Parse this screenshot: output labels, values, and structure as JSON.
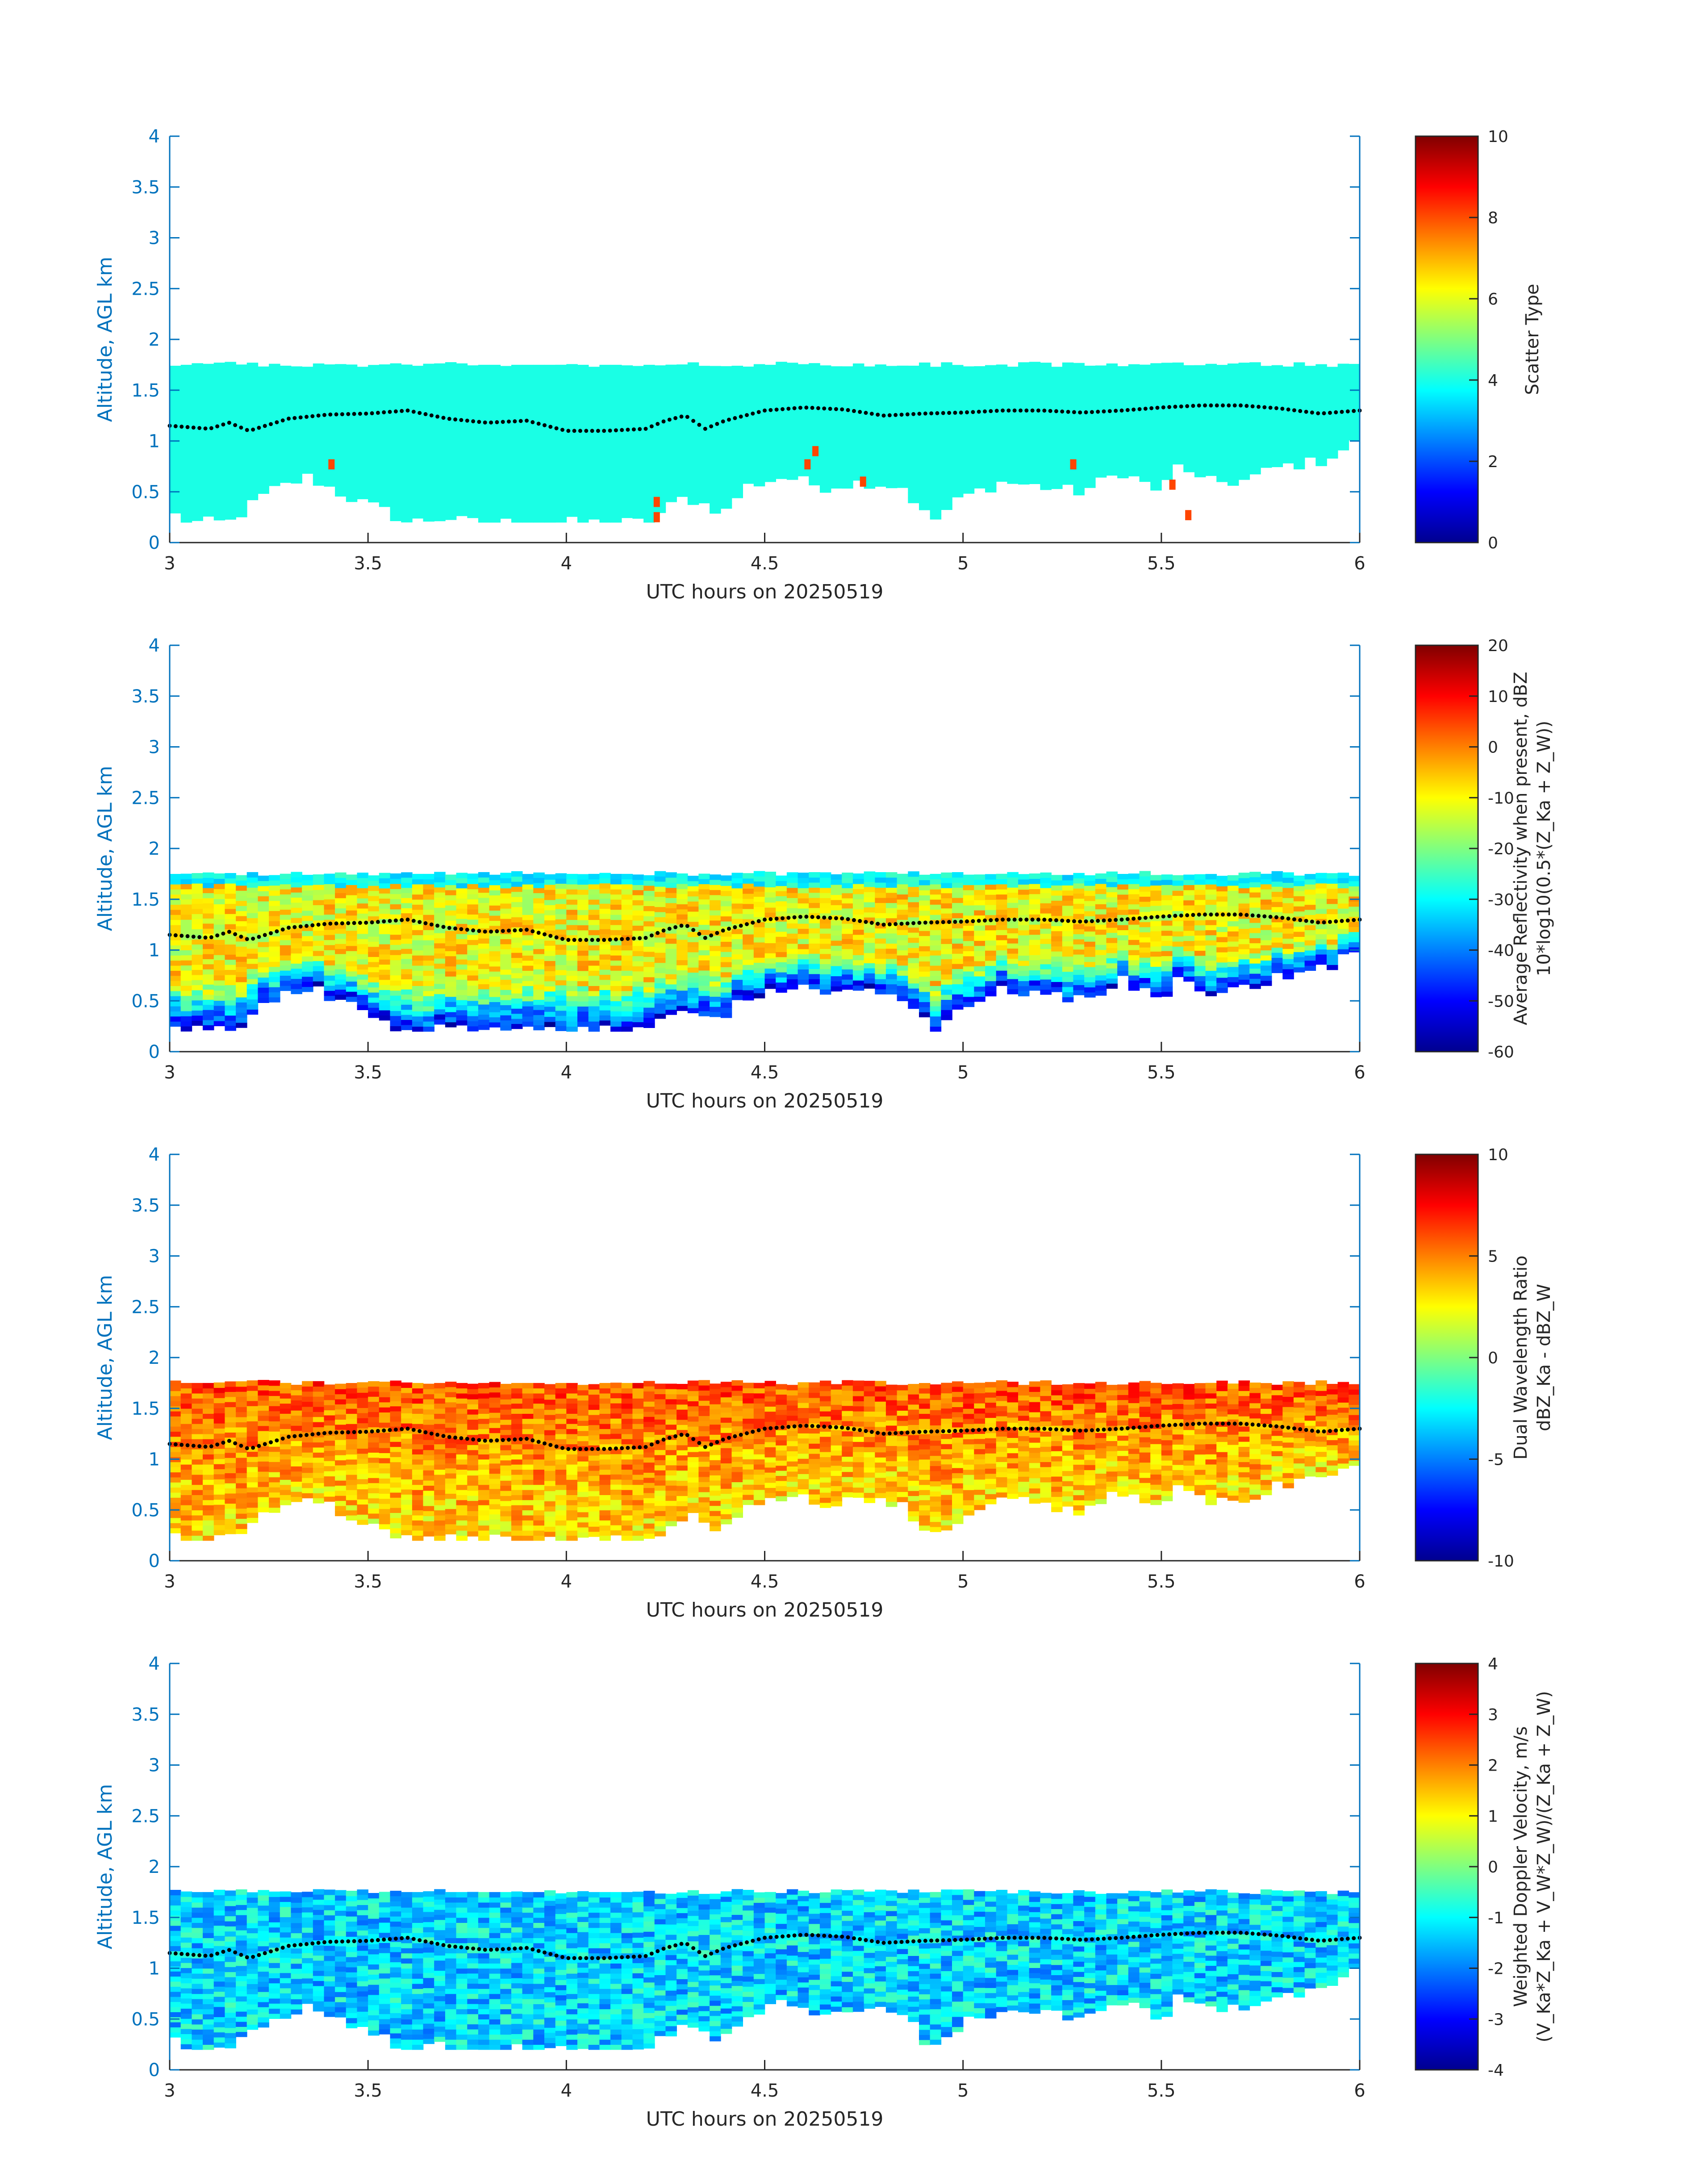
{
  "panels": [
    {
      "id": "scatter-type",
      "ylabel": "Altitude, AGL km",
      "xlabel": "UTC hours on 20250519",
      "colorbar": {
        "label_lines": [
          "Scatter Type"
        ],
        "ticks": [
          "0",
          "2",
          "4",
          "6",
          "8",
          "10"
        ],
        "range": [
          0,
          10
        ]
      }
    },
    {
      "id": "reflectivity",
      "ylabel": "Altitude, AGL km",
      "xlabel": "UTC hours on 20250519",
      "colorbar": {
        "label_lines": [
          "Average Reflectivity when present, dBZ",
          "10*log10(0.5*(Z_Ka + Z_W))"
        ],
        "ticks": [
          "-60",
          "-50",
          "-40",
          "-30",
          "-20",
          "-10",
          "0",
          "10",
          "20"
        ],
        "range": [
          -60,
          20
        ]
      }
    },
    {
      "id": "dual-wavelength-ratio",
      "ylabel": "Altitude, AGL km",
      "xlabel": "UTC hours on 20250519",
      "colorbar": {
        "label_lines": [
          "Dual Wavelength Ratio",
          "dBZ_Ka - dBZ_W"
        ],
        "ticks": [
          "-10",
          "-5",
          "0",
          "5",
          "10"
        ],
        "range": [
          -10,
          10
        ]
      }
    },
    {
      "id": "doppler-velocity",
      "ylabel": "Altitude, AGL km",
      "xlabel": "UTC hours on 20250519",
      "colorbar": {
        "label_lines": [
          "Weighted Doppler Velocity, m/s",
          "(V_Ka*Z_Ka + V_W*Z_W)/(Z_Ka + Z_W)"
        ],
        "ticks": [
          "-4",
          "-3",
          "-2",
          "-1",
          "0",
          "1",
          "2",
          "3",
          "4"
        ],
        "range": [
          -4,
          4
        ]
      }
    }
  ],
  "chart_data": [
    {
      "type": "heatmap",
      "xlabel": "UTC hours on 20250519",
      "ylabel": "Altitude, AGL km",
      "colorbar_label": "Scatter Type",
      "xlim": [
        3,
        6
      ],
      "ylim": [
        0,
        4
      ],
      "xticks": [
        "3",
        "3.5",
        "4",
        "4.5",
        "5",
        "5.5",
        "6"
      ],
      "yticks": [
        "0",
        "0.5",
        "1",
        "1.5",
        "2",
        "2.5",
        "3",
        "3.5",
        "4"
      ],
      "clim": [
        0,
        10
      ],
      "colormap": "jet",
      "cloud_top_km": 1.73,
      "cloud_base_km_by_hour": [
        [
          3.0,
          0.3
        ],
        [
          3.05,
          0.2
        ],
        [
          3.15,
          0.2
        ],
        [
          3.25,
          0.5
        ],
        [
          3.35,
          0.65
        ],
        [
          3.45,
          0.45
        ],
        [
          3.55,
          0.3
        ],
        [
          3.6,
          0.2
        ],
        [
          3.7,
          0.25
        ],
        [
          3.75,
          0.2
        ],
        [
          3.9,
          0.2
        ],
        [
          4.0,
          0.2
        ],
        [
          4.1,
          0.2
        ],
        [
          4.2,
          0.2
        ],
        [
          4.3,
          0.45
        ],
        [
          4.4,
          0.3
        ],
        [
          4.45,
          0.55
        ],
        [
          4.55,
          0.65
        ],
        [
          4.65,
          0.55
        ],
        [
          4.75,
          0.6
        ],
        [
          4.85,
          0.55
        ],
        [
          4.92,
          0.2
        ],
        [
          5.0,
          0.45
        ],
        [
          5.1,
          0.6
        ],
        [
          5.2,
          0.55
        ],
        [
          5.3,
          0.5
        ],
        [
          5.4,
          0.7
        ],
        [
          5.5,
          0.5
        ],
        [
          5.55,
          0.8
        ],
        [
          5.6,
          0.6
        ],
        [
          5.7,
          0.6
        ],
        [
          5.8,
          0.75
        ],
        [
          5.9,
          0.8
        ],
        [
          6.0,
          1.0
        ]
      ],
      "dominant_value": 4,
      "dotted_line": {
        "x": [
          3.0,
          3.1,
          3.15,
          3.2,
          3.3,
          3.4,
          3.5,
          3.6,
          3.7,
          3.8,
          3.9,
          3.95,
          4.0,
          4.1,
          4.2,
          4.25,
          4.3,
          4.35,
          4.4,
          4.5,
          4.6,
          4.7,
          4.8,
          4.9,
          5.0,
          5.1,
          5.2,
          5.3,
          5.4,
          5.5,
          5.6,
          5.7,
          5.8,
          5.9,
          6.0
        ],
        "y": [
          1.15,
          1.12,
          1.18,
          1.1,
          1.22,
          1.26,
          1.27,
          1.3,
          1.22,
          1.18,
          1.2,
          1.15,
          1.1,
          1.1,
          1.12,
          1.2,
          1.25,
          1.12,
          1.2,
          1.3,
          1.33,
          1.31,
          1.25,
          1.27,
          1.28,
          1.3,
          1.3,
          1.28,
          1.3,
          1.33,
          1.35,
          1.35,
          1.32,
          1.27,
          1.3
        ]
      }
    },
    {
      "type": "heatmap",
      "xlabel": "UTC hours on 20250519",
      "ylabel": "Altitude, AGL km",
      "colorbar_label": "Average Reflectivity when present, dBZ 10*log10(0.5*(Z_Ka + Z_W))",
      "xlim": [
        3,
        6
      ],
      "ylim": [
        0,
        4
      ],
      "clim": [
        -60,
        20
      ],
      "colormap": "jet",
      "core_value": -10,
      "edge_value": -50
    },
    {
      "type": "heatmap",
      "xlabel": "UTC hours on 20250519",
      "ylabel": "Altitude, AGL km",
      "colorbar_label": "Dual Wavelength Ratio dBZ_Ka - dBZ_W",
      "xlim": [
        3,
        6
      ],
      "ylim": [
        0,
        4
      ],
      "clim": [
        -10,
        10
      ],
      "colormap": "jet",
      "core_value": 3,
      "top_value": 6
    },
    {
      "type": "heatmap",
      "xlabel": "UTC hours on 20250519",
      "ylabel": "Altitude, AGL km",
      "colorbar_label": "Weighted Doppler Velocity, m/s (V_Ka*Z_Ka + V_W*Z_W)/(Z_Ka + Z_W)",
      "xlim": [
        3,
        6
      ],
      "ylim": [
        0,
        4
      ],
      "clim": [
        -4,
        4
      ],
      "colormap": "jet",
      "core_value": -1.3
    }
  ]
}
